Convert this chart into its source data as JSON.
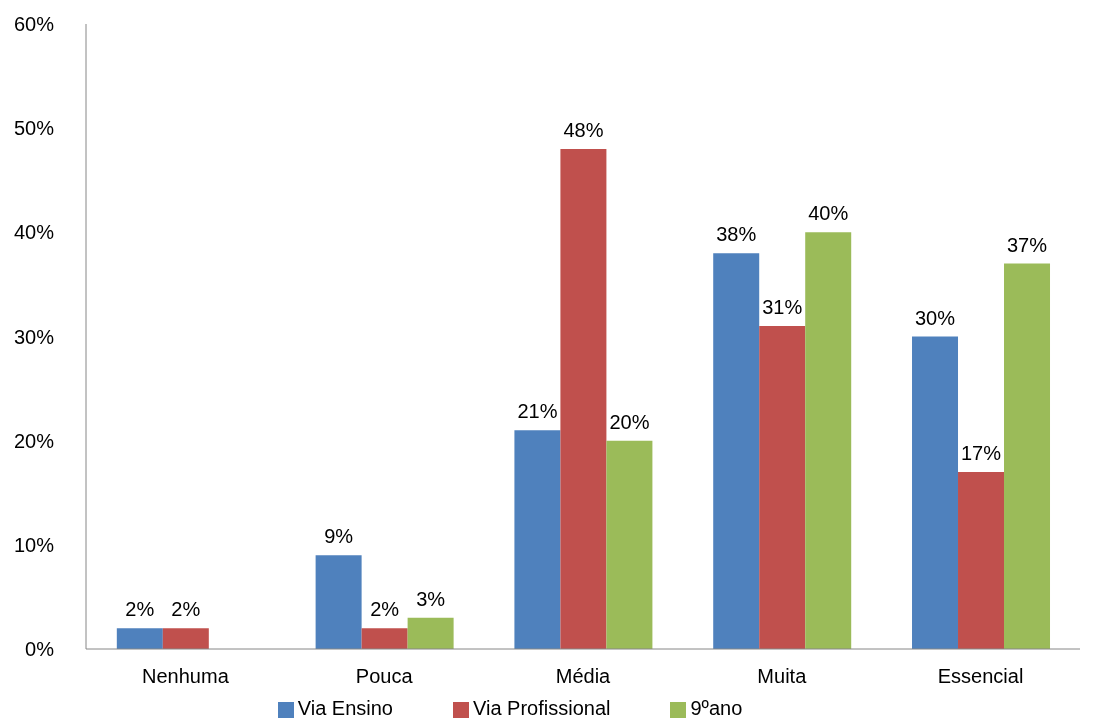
{
  "chart_data": {
    "type": "bar",
    "categories": [
      "Nenhuma",
      "Pouca",
      "Média",
      "Muita",
      "Essencial"
    ],
    "series": [
      {
        "name": "Via Ensino",
        "color": "#4f81bd",
        "values": [
          2,
          9,
          21,
          38,
          30
        ],
        "value_labels": [
          "2%",
          "9%",
          "21%",
          "38%",
          "30%"
        ]
      },
      {
        "name": "Via Profissional",
        "color": "#c0504d",
        "values": [
          2,
          2,
          48,
          31,
          17
        ],
        "value_labels": [
          "2%",
          "2%",
          "48%",
          "31%",
          "17%"
        ]
      },
      {
        "name": "9ºano",
        "color": "#9bbb59",
        "values": [
          null,
          3,
          20,
          40,
          37
        ],
        "value_labels": [
          null,
          "3%",
          "20%",
          "40%",
          "37%"
        ]
      }
    ],
    "ylim": [
      0,
      60
    ],
    "yticks": [
      {
        "value": 0,
        "label": "0%"
      },
      {
        "value": 10,
        "label": "10%"
      },
      {
        "value": 20,
        "label": "20%"
      },
      {
        "value": 30,
        "label": "30%"
      },
      {
        "value": 40,
        "label": "40%"
      },
      {
        "value": 50,
        "label": "50%"
      },
      {
        "value": 60,
        "label": "60%"
      }
    ],
    "legend": "bottom"
  }
}
